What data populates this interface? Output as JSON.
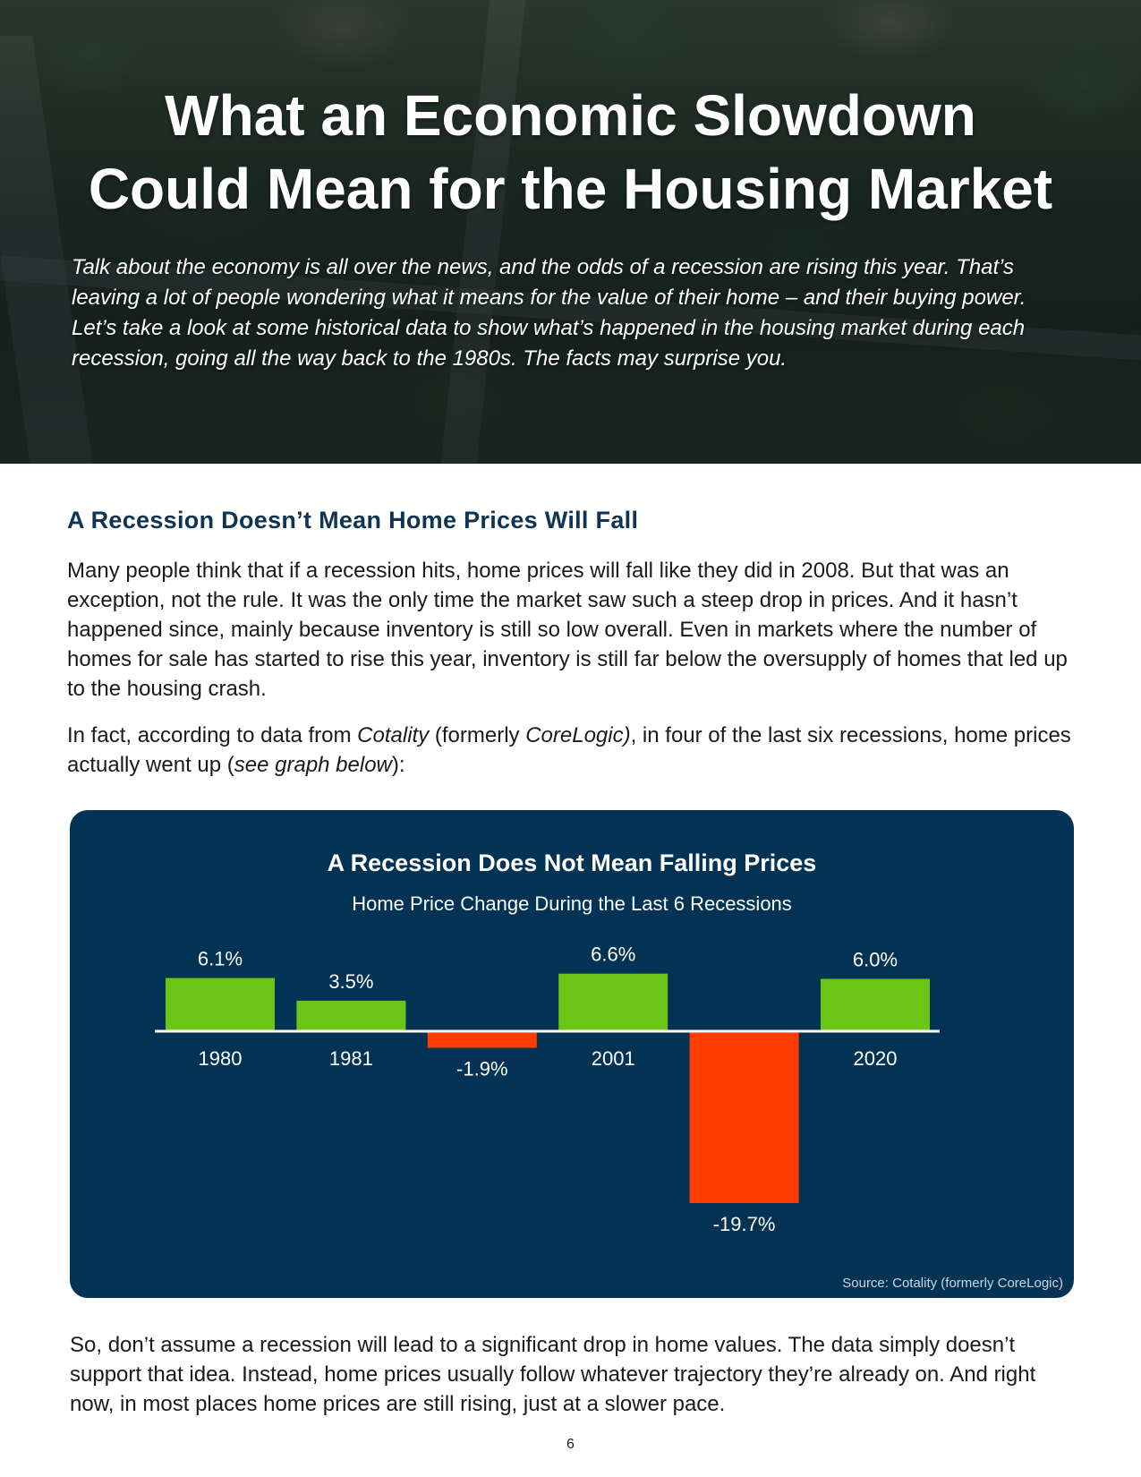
{
  "hero": {
    "title_line1": "What an Economic Slowdown",
    "title_line2": "Could Mean for the Housing Market",
    "intro": "Talk about the economy is all over the news, and the odds of a recession are rising this year. That’s leaving a lot of people wondering what it means for the value of their home – and their buying power. Let’s take a look at some historical data to show what’s happened in the housing market during each recession, going all the way back to the 1980s. The facts may surprise you."
  },
  "section": {
    "heading": "A Recession Doesn’t Mean Home Prices Will Fall",
    "para1": "Many people think that if a recession hits, home prices will fall like they did in 2008. But that was an exception, not the rule. It was the only time the market saw such a steep drop in prices. And it hasn’t happened since, mainly because inventory is still so low overall. Even in markets where the number of homes for sale has started to rise this year, inventory is still far below the oversupply of homes that led up to the housing crash.",
    "para2_a": "In fact, according to data from ",
    "para2_cotality": "Cotality",
    "para2_b": " (formerly ",
    "para2_corelogic": "CoreLogic)",
    "para2_c": ", in four of the last six recessions, home prices actually went up (",
    "para2_see": "see graph below",
    "para2_d": "):",
    "para3": "So, don’t assume a recession will lead to a significant drop in home values. The data simply doesn’t support that idea. Instead, home prices usually follow whatever trajectory they’re already on. And right now, in most places home prices are still rising, just at a slower pace."
  },
  "chart_data": {
    "type": "bar",
    "title": "A Recession Does Not Mean Falling Prices",
    "subtitle": "Home Price Change During the Last 6 Recessions",
    "categories": [
      "1980",
      "1981",
      "",
      "2001",
      "",
      "2020"
    ],
    "values": [
      6.1,
      3.5,
      -1.9,
      6.6,
      -19.7,
      6.0
    ],
    "value_labels": [
      "6.1%",
      "3.5%",
      "-1.9%",
      "6.6%",
      "-19.7%",
      "6.0%"
    ],
    "source": "Source: Cotality (formerly CoreLogic)",
    "colors": {
      "positive": "#6cc417",
      "negative": "#ff3d00",
      "background": "#033354",
      "text": "#ffffff"
    },
    "ylim": [
      -19.7,
      6.6
    ],
    "grid": false,
    "legend": "none"
  },
  "page_number": "6"
}
